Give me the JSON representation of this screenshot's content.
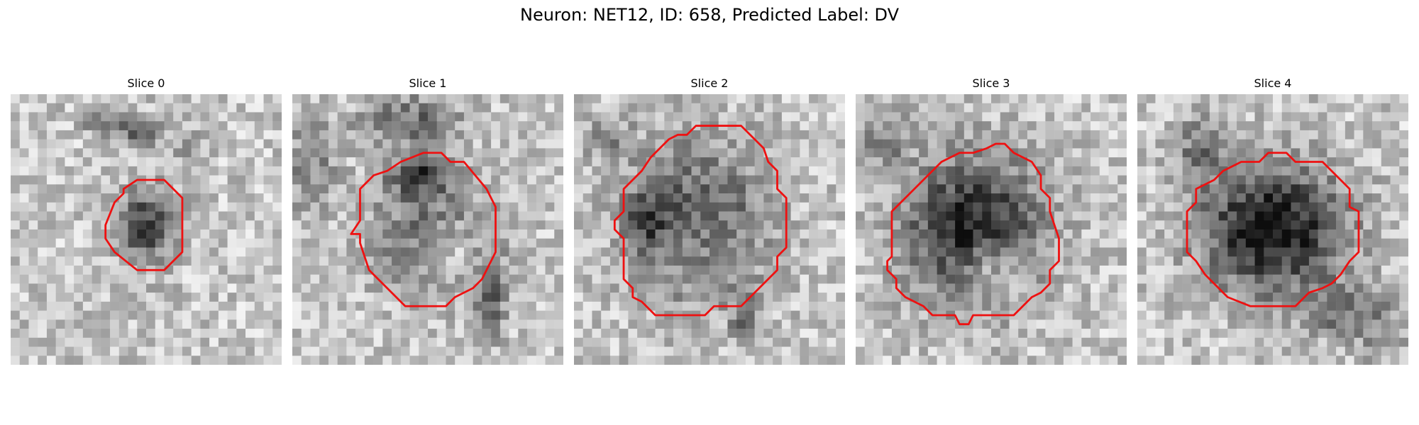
{
  "figure": {
    "title": "Neuron: NET12, ID: 658, Predicted Label: DV"
  },
  "panels": [
    {
      "title": "Slice 0",
      "contour": [
        [
          14,
          9.5
        ],
        [
          17,
          9.5
        ],
        [
          19,
          11.5
        ],
        [
          19,
          17.5
        ],
        [
          17,
          19.5
        ],
        [
          14,
          19.5
        ],
        [
          11.5,
          17.5
        ],
        [
          10.5,
          16
        ],
        [
          10.5,
          14.5
        ],
        [
          11.5,
          12
        ],
        [
          12.5,
          11
        ],
        [
          12.5,
          10.5
        ],
        [
          14,
          9.5
        ]
      ]
    },
    {
      "title": "Slice 1",
      "contour": [
        [
          14.5,
          6.5
        ],
        [
          16.5,
          6.5
        ],
        [
          17.5,
          7.5
        ],
        [
          19,
          7.5
        ],
        [
          21.5,
          10.5
        ],
        [
          22.5,
          12.5
        ],
        [
          22.5,
          17.5
        ],
        [
          21.5,
          19.5
        ],
        [
          21,
          20.5
        ],
        [
          20,
          21.5
        ],
        [
          19,
          22
        ],
        [
          18,
          22.5
        ],
        [
          17,
          23.5
        ],
        [
          12.5,
          23.5
        ],
        [
          10.5,
          21.5
        ],
        [
          8.5,
          19.5
        ],
        [
          8,
          18
        ],
        [
          7.5,
          16.5
        ],
        [
          7.5,
          15.5
        ],
        [
          6.5,
          15.5
        ],
        [
          7.5,
          14
        ],
        [
          7.5,
          10.5
        ],
        [
          8.5,
          9.5
        ],
        [
          9,
          9
        ],
        [
          10.5,
          8.5
        ],
        [
          12,
          7.5
        ],
        [
          14.5,
          6.5
        ]
      ]
    },
    {
      "title": "Slice 2",
      "contour": [
        [
          13.5,
          3.5
        ],
        [
          18.5,
          3.5
        ],
        [
          21,
          6
        ],
        [
          21.5,
          7.5
        ],
        [
          22.5,
          8.5
        ],
        [
          22.5,
          10.5
        ],
        [
          23.5,
          11.5
        ],
        [
          23.5,
          17
        ],
        [
          22.5,
          18
        ],
        [
          22.5,
          19.5
        ],
        [
          21.5,
          20.5
        ],
        [
          20.5,
          21.5
        ],
        [
          18.5,
          23.5
        ],
        [
          15.5,
          23.5
        ],
        [
          14.5,
          24.5
        ],
        [
          9,
          24.5
        ],
        [
          8,
          23.5
        ],
        [
          7.5,
          23
        ],
        [
          6.5,
          22.5
        ],
        [
          6.5,
          21.5
        ],
        [
          5.5,
          20.5
        ],
        [
          5.5,
          17.5
        ],
        [
          5.5,
          16
        ],
        [
          4.5,
          15
        ],
        [
          4.5,
          14
        ],
        [
          5.5,
          13
        ],
        [
          5.5,
          10.5
        ],
        [
          6.5,
          9.5
        ],
        [
          7.5,
          8.5
        ],
        [
          8.5,
          7
        ],
        [
          9.5,
          6
        ],
        [
          10.5,
          5
        ],
        [
          11.5,
          4.5
        ],
        [
          12.5,
          4.5
        ],
        [
          13.5,
          3.5
        ]
      ]
    },
    {
      "title": "Slice 3",
      "contour": [
        [
          15.5,
          5.5
        ],
        [
          16.5,
          5.5
        ],
        [
          17.5,
          6.5
        ],
        [
          18.5,
          7
        ],
        [
          19.5,
          7.5
        ],
        [
          20.5,
          9
        ],
        [
          20.5,
          10.5
        ],
        [
          21.5,
          11.5
        ],
        [
          21.5,
          13
        ],
        [
          22,
          14.5
        ],
        [
          22.5,
          16
        ],
        [
          22.5,
          18.5
        ],
        [
          21.5,
          19.5
        ],
        [
          21.5,
          21
        ],
        [
          20.5,
          22
        ],
        [
          19.5,
          22.5
        ],
        [
          18.5,
          23.5
        ],
        [
          17.5,
          24.5
        ],
        [
          13,
          24.5
        ],
        [
          12.5,
          25.5
        ],
        [
          11.5,
          25.5
        ],
        [
          11,
          24.5
        ],
        [
          8.5,
          24.5
        ],
        [
          7.5,
          23.5
        ],
        [
          6.5,
          23
        ],
        [
          5.5,
          22.5
        ],
        [
          4.5,
          21.5
        ],
        [
          4.5,
          20.5
        ],
        [
          3.5,
          19.5
        ],
        [
          3.5,
          18.5
        ],
        [
          4,
          18
        ],
        [
          4,
          13
        ],
        [
          8.5,
          8.5
        ],
        [
          9.5,
          7.5
        ],
        [
          11.5,
          6.5
        ],
        [
          13,
          6.5
        ],
        [
          14.5,
          6
        ],
        [
          15.5,
          5.5
        ]
      ]
    },
    {
      "title": "Slice 4",
      "contour": [
        [
          14.5,
          6.5
        ],
        [
          16.5,
          6.5
        ],
        [
          17.5,
          7.5
        ],
        [
          20.5,
          7.5
        ],
        [
          21.5,
          8.5
        ],
        [
          22.5,
          9.5
        ],
        [
          23.5,
          10.5
        ],
        [
          23.5,
          12.5
        ],
        [
          24.5,
          13
        ],
        [
          24.5,
          17.5
        ],
        [
          23.5,
          18.5
        ],
        [
          22.5,
          20
        ],
        [
          21.5,
          21
        ],
        [
          20.5,
          21.5
        ],
        [
          19,
          22
        ],
        [
          18,
          23
        ],
        [
          17.5,
          23.5
        ],
        [
          12.5,
          23.5
        ],
        [
          10,
          22.5
        ],
        [
          9,
          21.5
        ],
        [
          7.5,
          20
        ],
        [
          6.5,
          18.5
        ],
        [
          5.5,
          17.5
        ],
        [
          5.5,
          13
        ],
        [
          6.5,
          12
        ],
        [
          6.5,
          10.5
        ],
        [
          8.5,
          9.5
        ],
        [
          9.5,
          8.5
        ],
        [
          11.5,
          7.5
        ],
        [
          13.5,
          7.5
        ],
        [
          14.5,
          6.5
        ]
      ]
    }
  ],
  "colors": {
    "contour": "#ee1111",
    "pixel_dark": "#111111",
    "pixel_light": "#f0f0f0"
  }
}
